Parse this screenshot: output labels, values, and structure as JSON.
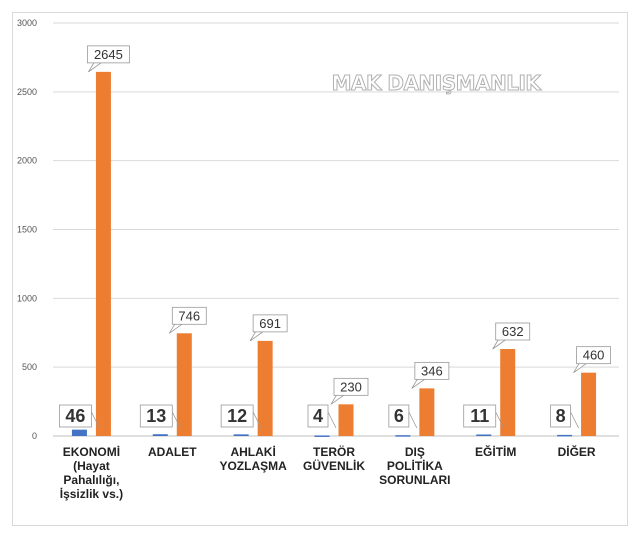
{
  "watermark": "MAK DANIŞMANLIK",
  "chart_data": {
    "type": "bar",
    "title": "",
    "xlabel": "",
    "ylabel": "",
    "ylim": [
      0,
      3000
    ],
    "yticks": [
      0,
      500,
      1000,
      1500,
      2000,
      2500,
      3000
    ],
    "grid": true,
    "legend": "none",
    "categories": [
      [
        "EKONOMİ",
        "(Hayat",
        "Pahalılığı,",
        "İşsizlik vs.)"
      ],
      [
        "ADALET"
      ],
      [
        "AHLAKİ",
        "YOZLAŞMA"
      ],
      [
        "TERÖR",
        "GÜVENLİK"
      ],
      [
        "DIŞ",
        "POLİTİKA",
        "SORUNLARI"
      ],
      [
        "EĞİTİM"
      ],
      [
        "DİĞER"
      ]
    ],
    "series": [
      {
        "color": "#4472c4",
        "values": [
          46,
          13,
          12,
          4,
          6,
          11,
          8
        ]
      },
      {
        "color": "#ed7d31",
        "values": [
          2645,
          746,
          691,
          230,
          346,
          632,
          460
        ]
      }
    ]
  }
}
